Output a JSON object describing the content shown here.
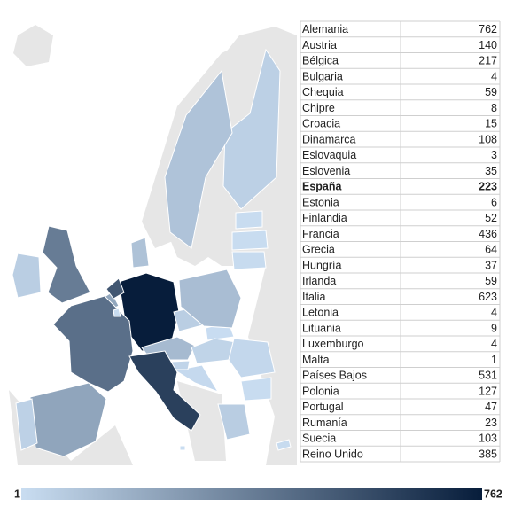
{
  "table": {
    "rows": [
      [
        "Alemania",
        762
      ],
      [
        "Austria",
        140
      ],
      [
        "Bélgica",
        217
      ],
      [
        "Bulgaria",
        4
      ],
      [
        "Chequia",
        59
      ],
      [
        "Chipre",
        8
      ],
      [
        "Croacia",
        15
      ],
      [
        "Dinamarca",
        108
      ],
      [
        "Eslovaquia",
        3
      ],
      [
        "Eslovenia",
        35
      ],
      [
        "España",
        223
      ],
      [
        "Estonia",
        6
      ],
      [
        "Finlandia",
        52
      ],
      [
        "Francia",
        436
      ],
      [
        "Grecia",
        64
      ],
      [
        "Hungría",
        37
      ],
      [
        "Irlanda",
        59
      ],
      [
        "Italia",
        623
      ],
      [
        "Letonia",
        4
      ],
      [
        "Lituania",
        9
      ],
      [
        "Luxemburgo",
        4
      ],
      [
        "Malta",
        1
      ],
      [
        "Países Bajos",
        531
      ],
      [
        "Polonia",
        127
      ],
      [
        "Portugal",
        47
      ],
      [
        "Rumanía",
        23
      ],
      [
        "Suecia",
        103
      ],
      [
        "Reino Unido",
        385
      ]
    ],
    "highlighted_row": 10
  },
  "legend": {
    "min": 1,
    "max": 762,
    "colors": [
      "#c9ddf1",
      "#071d3b"
    ]
  }
}
